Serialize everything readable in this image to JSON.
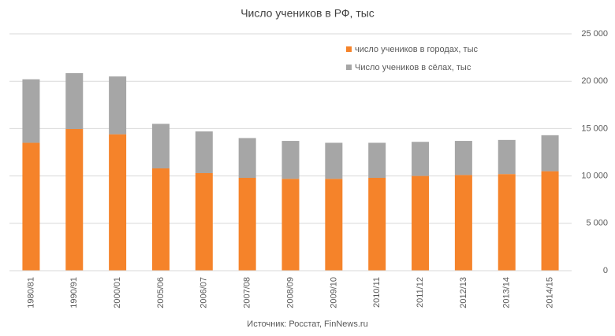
{
  "chart_data": {
    "type": "stacked_bar",
    "title": "Число учеников в РФ, тыс",
    "source": "Источник: Росстат, FinNews.ru",
    "categories": [
      "1980/81",
      "1990/91",
      "2000/01",
      "2005/06",
      "2006/07",
      "2007/08",
      "2008/09",
      "2009/10",
      "2010/11",
      "2011/12",
      "2012/13",
      "2013/14",
      "2014/15"
    ],
    "series": [
      {
        "name": "число учеников в городах, тыс",
        "color": "#f5832a",
        "values": [
          13500,
          14950,
          14400,
          10800,
          10300,
          9800,
          9700,
          9700,
          9800,
          10000,
          10100,
          10200,
          10500
        ]
      },
      {
        "name": "Число учеников в сёлах, тыс",
        "color": "#a6a6a6",
        "values": [
          6700,
          5900,
          6100,
          4700,
          4400,
          4200,
          4000,
          3800,
          3700,
          3600,
          3600,
          3600,
          3800
        ]
      }
    ],
    "ylim": [
      0,
      25000
    ],
    "yticks": [
      0,
      {
        "value": 5000,
        "label": "5 000"
      },
      {
        "value": 10000,
        "label": "10 000"
      },
      {
        "value": 15000,
        "label": "15 000"
      },
      {
        "value": 20000,
        "label": "20 000"
      },
      {
        "value": 25000,
        "label": "25 000"
      }
    ],
    "grid": true,
    "legend": "top-right"
  }
}
